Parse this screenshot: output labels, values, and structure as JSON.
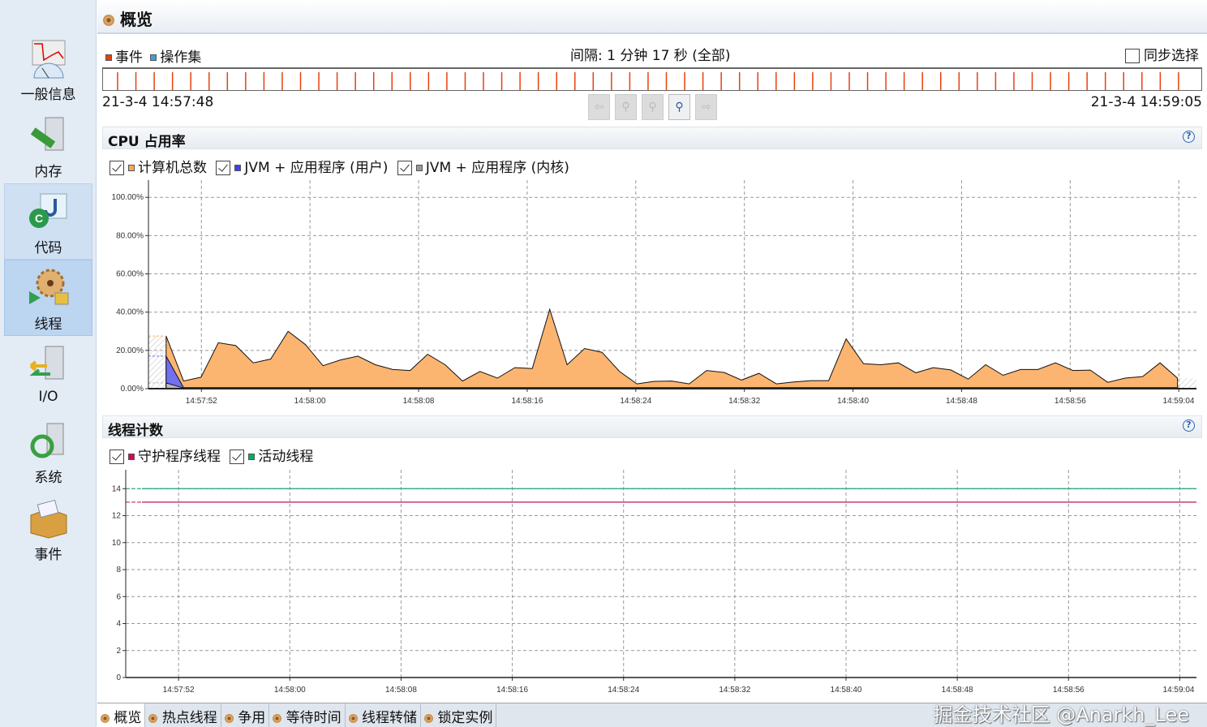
{
  "sidebar": {
    "items": [
      {
        "label": "一般信息",
        "icon": "monitor-chart-icon"
      },
      {
        "label": "内存",
        "icon": "memory-server-icon"
      },
      {
        "label": "代码",
        "icon": "code-icon"
      },
      {
        "label": "线程",
        "icon": "threads-gear-lock-icon",
        "selected": true
      },
      {
        "label": "I/O",
        "icon": "io-server-icon"
      },
      {
        "label": "系统",
        "icon": "system-icon"
      },
      {
        "label": "事件",
        "icon": "events-box-icon"
      }
    ]
  },
  "header": {
    "title": "概览"
  },
  "timeline": {
    "legend": [
      {
        "label": "事件",
        "color": "#e8400c"
      },
      {
        "label": "操作集",
        "color": "#3aa0e0"
      }
    ],
    "interval": "间隔: 1 分钟 17 秒 (全部)",
    "sync_label": "同步选择",
    "sync_checked": false,
    "start": "21-3-4 14:57:48",
    "end": "21-3-4 14:59:05",
    "event_count": 59,
    "event_color": "#e8400c",
    "nav_buttons": [
      "back-icon",
      "zoom-out-icon",
      "zoom-fit-icon",
      "zoom-in-icon",
      "forward-icon"
    ]
  },
  "cpu_panel": {
    "title": "CPU 占用率",
    "legend": [
      {
        "label": "计算机总数",
        "color": "#f8a850",
        "checked": true
      },
      {
        "label": "JVM + 应用程序 (用户)",
        "color": "#4040f0",
        "checked": true
      },
      {
        "label": "JVM + 应用程序 (内核)",
        "color": "#999999",
        "checked": true
      }
    ]
  },
  "thread_panel": {
    "title": "线程计数",
    "legend": [
      {
        "label": "守护程序线程",
        "color": "#e0005a",
        "checked": true
      },
      {
        "label": "活动线程",
        "color": "#00b060",
        "checked": true
      }
    ]
  },
  "chart_data": [
    {
      "type": "area",
      "title": "CPU 占用率",
      "xlim": [
        "14:57:48.1",
        "14:59:05.3"
      ],
      "ylim": [
        0,
        109
      ],
      "grid": true,
      "yticks": [
        "0.00%",
        "20.00%",
        "40.00%",
        "60.00%",
        "80.00%",
        "100.00%"
      ],
      "ytick_values": [
        0,
        20,
        40,
        60,
        80,
        100
      ],
      "xticks": [
        "14:57:52",
        "14:58:00",
        "14:58:08",
        "14:58:16",
        "14:58:24",
        "14:58:32",
        "14:58:40",
        "14:58:48",
        "14:58:56",
        "14:59:04"
      ],
      "x_start": "14:57:49.4",
      "x_end": "14:59:03.9",
      "series": [
        {
          "name": "计算机总数",
          "color": "#fbb570",
          "values": [
            27.5,
            4,
            6,
            24,
            22.5,
            13.5,
            15.5,
            30,
            23,
            12,
            15,
            17,
            12.5,
            10,
            9.5,
            18,
            12.5,
            4,
            9,
            5.5,
            11,
            10.5,
            41.5,
            12.5,
            21,
            19,
            9,
            2.5,
            3.8,
            4,
            2.5,
            9.5,
            8.5,
            4.5,
            8,
            2.5,
            3.5,
            4.2,
            4.2,
            26,
            13,
            12.5,
            13.5,
            8.3,
            11,
            9.8,
            5,
            12.5,
            7,
            10,
            10,
            13.5,
            9.5,
            9.7,
            3.3,
            5.5,
            6.3,
            13.5,
            5.5
          ]
        },
        {
          "name": "JVM + 应用程序 (用户)",
          "color": "#7070f0",
          "values": [
            17,
            0.5,
            0.5,
            0.5,
            0.5,
            0.5,
            0.5,
            0.5,
            0.5,
            0.5,
            0.5,
            0.5,
            0.5,
            0.5,
            0.5,
            0.5,
            0.5,
            0.5,
            0.5,
            0.5,
            0.5,
            0.5,
            0.5,
            0.5,
            0.5,
            0.5,
            0.5,
            0.5,
            0.5,
            0.5,
            0.5,
            0.5,
            0.5,
            0.5,
            0.5,
            0.5,
            0.5,
            0.5,
            0.5,
            0.5,
            0.5,
            0.5,
            0.5,
            0.5,
            0.5,
            0.5,
            0.5,
            0.5,
            0.5,
            0.5,
            0.5,
            0.5,
            0.5,
            0.5,
            0.5,
            0.5,
            0.5,
            0.5,
            0.5
          ]
        },
        {
          "name": "JVM + 应用程序 (内核)",
          "color": "#b8b8c0",
          "values": [
            3,
            0.3,
            0.3,
            0.3,
            0.3,
            0.3,
            0.3,
            0.3,
            0.3,
            0.3,
            0.3,
            0.3,
            0.3,
            0.3,
            0.3,
            0.3,
            0.3,
            0.3,
            0.3,
            0.3,
            0.3,
            0.3,
            0.3,
            0.3,
            0.3,
            0.3,
            0.3,
            0.3,
            0.3,
            0.3,
            0.3,
            0.3,
            0.3,
            0.3,
            0.3,
            0.3,
            0.3,
            0.3,
            0.3,
            0.3,
            0.3,
            0.3,
            0.3,
            0.3,
            0.3,
            0.3,
            0.3,
            0.3,
            0.3,
            0.3,
            0.3,
            0.3,
            0.3,
            0.3,
            0.3,
            0.3,
            0.3,
            0.3,
            0.3
          ]
        }
      ]
    },
    {
      "type": "line",
      "title": "线程计数",
      "xlim": [
        "14:57:48.2",
        "14:59:05.2"
      ],
      "ylim": [
        0,
        15.4
      ],
      "grid": true,
      "yticks": [
        "0",
        "2",
        "4",
        "6",
        "8",
        "10",
        "12",
        "14"
      ],
      "ytick_values": [
        0,
        2,
        4,
        6,
        8,
        10,
        12,
        14
      ],
      "xticks": [
        "14:57:52",
        "14:58:00",
        "14:58:08",
        "14:58:16",
        "14:58:24",
        "14:58:32",
        "14:58:40",
        "14:58:48",
        "14:58:56",
        "14:59:04"
      ],
      "series": [
        {
          "name": "守护程序线程",
          "color": "#c0105a",
          "values": [
            13,
            13
          ]
        },
        {
          "name": "活动线程",
          "color": "#20a080",
          "values": [
            14,
            14
          ]
        }
      ]
    }
  ],
  "tabs": [
    {
      "label": "概览",
      "selected": true
    },
    {
      "label": "热点线程"
    },
    {
      "label": "争用"
    },
    {
      "label": "等待时间"
    },
    {
      "label": "线程转储"
    },
    {
      "label": "锁定实例"
    }
  ],
  "watermark": "掘金技术社区 @Anarkh_Lee"
}
